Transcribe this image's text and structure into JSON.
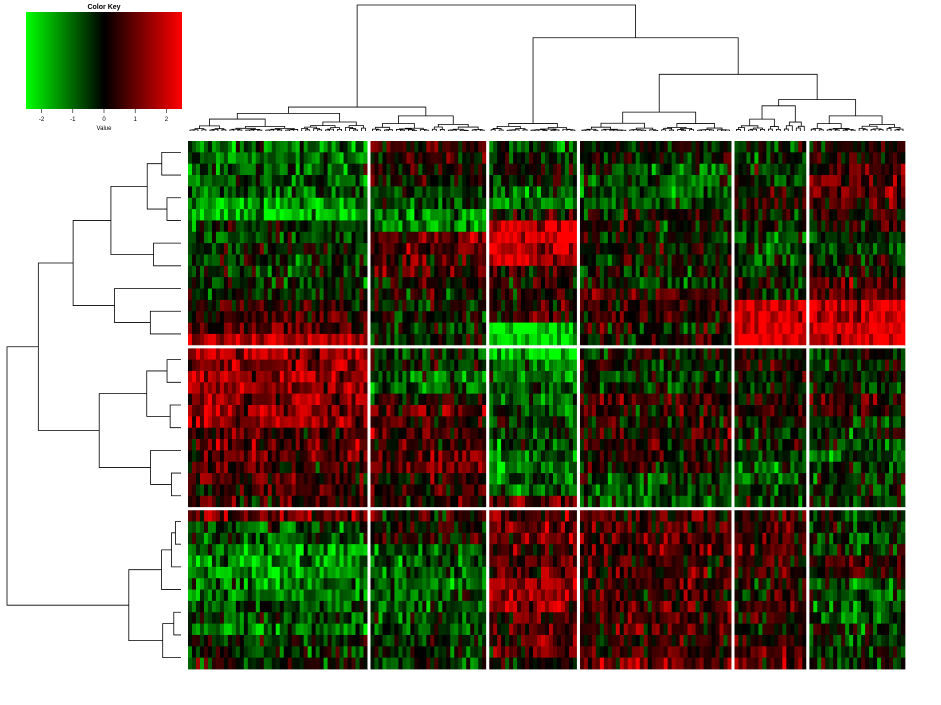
{
  "chart_data": {
    "type": "heatmap",
    "title": "",
    "color_key": {
      "title": "Color Key",
      "xlabel": "Value",
      "ticks": [
        "-2",
        "-1",
        "0",
        "1",
        "2"
      ],
      "tick_values": [
        -2,
        -1,
        0,
        1,
        2
      ],
      "range": [
        -2.5,
        2.5
      ],
      "colors": [
        "#00ff00",
        "#000000",
        "#ff0000"
      ]
    },
    "n_columns": 176,
    "n_rows": 23,
    "column_groups": [
      {
        "n": 45,
        "pattern": [
          -1.0,
          -0.8,
          -0.9,
          -1.6,
          -0.4,
          -0.2,
          -0.4,
          -0.3,
          0.2,
          0.6,
          1.6,
          1.4,
          1.5,
          1.2,
          1.5,
          0.8,
          0.9,
          0.6,
          0.4,
          1.0,
          -0.6,
          -1.4,
          -1.6,
          -1.3,
          -0.6,
          -1.2,
          -0.3,
          -0.1
        ]
      },
      {
        "n": 29,
        "pattern": [
          0.3,
          0.0,
          -0.4,
          -1.3,
          0.8,
          0.6,
          0.0,
          -0.2,
          -0.2,
          -0.2,
          -1.0,
          0.0,
          0.7,
          0.6,
          1.0,
          0.4,
          0.3,
          0.2,
          -0.7,
          -1.0,
          -0.8,
          -0.6,
          -0.3,
          -0.5
        ]
      },
      {
        "n": 22,
        "pattern": [
          -0.5,
          -0.2,
          -0.8,
          0.0,
          2.2,
          2.0,
          0.3,
          0.3,
          0.4,
          -2.2,
          -2.3,
          -1.0,
          -0.8,
          -0.7,
          -0.5,
          -0.8,
          -1.2,
          -1.0,
          0.9,
          1.0,
          0.6,
          0.7,
          1.5,
          1.6,
          0.8,
          0.8,
          0.0
        ]
      },
      {
        "n": 38,
        "pattern": [
          0.0,
          -0.6,
          -0.7,
          0.0,
          -0.2,
          -0.1,
          -0.3,
          0.4,
          0.4,
          0.2,
          -0.2,
          -0.3,
          0.6,
          0.3,
          0.4,
          0.3,
          -0.6,
          -0.6,
          0.6,
          0.8,
          0.5,
          0.6,
          0.5,
          0.6,
          0.5,
          1.0
        ]
      },
      {
        "n": 18,
        "pattern": [
          -0.4,
          -0.3,
          0.3,
          -0.2,
          -0.8,
          -0.5,
          -0.3,
          2.2,
          2.2,
          0.2,
          0.0,
          0.4,
          -0.2,
          -0.4,
          -0.7,
          -0.3,
          0.6,
          0.5,
          0.4,
          0.2,
          0.2,
          0.3,
          0.6
        ]
      },
      {
        "n": 24,
        "pattern": [
          0.3,
          0.8,
          0.8,
          0.2,
          -0.5,
          0.0,
          0.9,
          2.0,
          2.0,
          -0.3,
          -0.2,
          0.6,
          -0.5,
          -0.6,
          -0.3,
          -0.4,
          -0.4,
          -0.4,
          0.3,
          -0.6,
          -0.7,
          -0.3,
          -0.1
        ]
      }
    ],
    "row_groups": [
      {
        "n": 9
      },
      {
        "n": 7
      },
      {
        "n": 7
      }
    ],
    "column_dendrogram": true,
    "row_dendrogram": true,
    "xlabel": "",
    "ylabel": ""
  },
  "colors": {
    "low": "#00ff00",
    "mid": "#000000",
    "high": "#ff0000",
    "separator": "#ffffff",
    "dendrogram": "#000000"
  }
}
